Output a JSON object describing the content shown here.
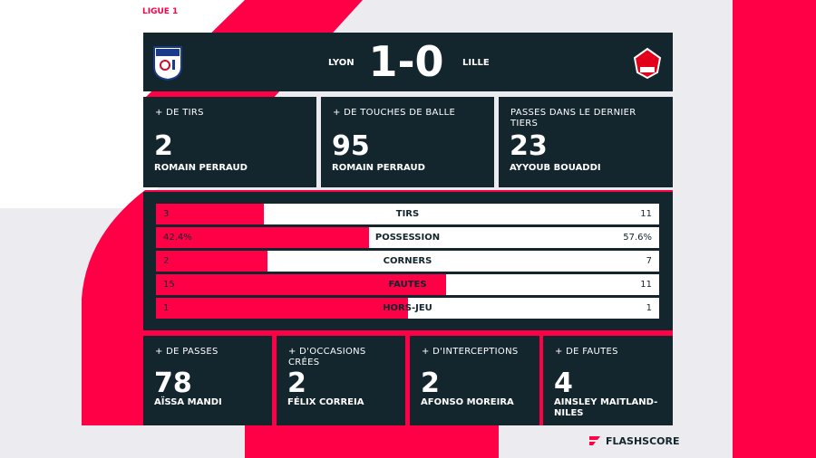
{
  "league": "LIGUE 1",
  "match": {
    "home": "LYON",
    "score": "1-0",
    "away": "LILLE"
  },
  "leaders_top": [
    {
      "label": "+ DE TIRS",
      "value": 2,
      "player": "ROMAIN PERRAUD"
    },
    {
      "label": "+ DE TOUCHES DE BALLE",
      "value": 95,
      "player": "ROMAIN PERRAUD"
    },
    {
      "label": "PASSES DANS LE DERNIER TIERS",
      "value": 23,
      "player": "AYYOUB BOUADDI"
    }
  ],
  "stats": [
    {
      "label": "TIRS",
      "home": 3,
      "away": 11
    },
    {
      "label": "POSSESSION",
      "home": {
        "value": 42.4,
        "label": "42.4%"
      },
      "away": {
        "value": 57.6,
        "label": "57.6%"
      }
    },
    {
      "label": "CORNERS",
      "home": 2,
      "away": 7
    },
    {
      "label": "FAUTES",
      "home": 15,
      "away": 11
    },
    {
      "label": "HORS-JEU",
      "home": 1,
      "away": 1
    }
  ],
  "leaders_bottom": [
    {
      "label": "+ DE PASSES",
      "value": 78,
      "player": "AÏSSA MANDI"
    },
    {
      "label": "+ D'OCCASIONS CRÉES",
      "value": 2,
      "player": "FÉLIX CORREIA"
    },
    {
      "label": "+ D'INTERCEPTIONS",
      "value": 2,
      "player": "AFONSO MOREIRA"
    },
    {
      "label": "+ DE FAUTES",
      "value": 4,
      "player": "AINSLEY MAITLAND-NILES"
    }
  ],
  "brand": "FLASHSCORE"
}
